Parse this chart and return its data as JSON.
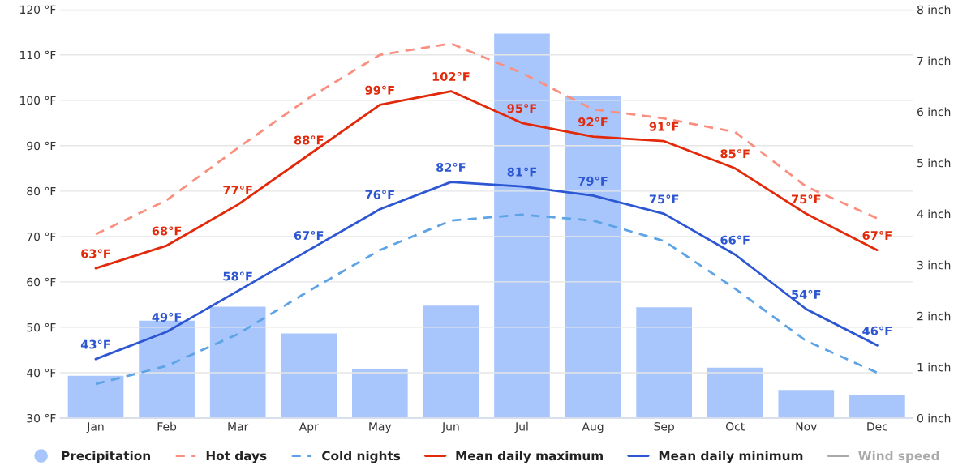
{
  "chart_data": {
    "type": "line",
    "categories": [
      "Jan",
      "Feb",
      "Mar",
      "Apr",
      "May",
      "Jun",
      "Jul",
      "Aug",
      "Sep",
      "Oct",
      "Nov",
      "Dec"
    ],
    "series": [
      {
        "name": "Precipitation",
        "type": "bar",
        "axis": "y2",
        "color": "#a8c6fc",
        "values": [
          0.84,
          1.92,
          2.19,
          1.67,
          0.97,
          2.21,
          7.54,
          6.31,
          2.18,
          1.0,
          0.56,
          0.46
        ]
      },
      {
        "name": "Hot days",
        "line_style": "dashed",
        "color": "#fb8f7f",
        "values": [
          70.5,
          78,
          89.5,
          100.5,
          110,
          112.5,
          106,
          98,
          96,
          93,
          81,
          74
        ]
      },
      {
        "name": "Cold nights",
        "line_style": "dashed",
        "color": "#5da3e6",
        "values": [
          37.5,
          41.5,
          48.5,
          58,
          67,
          73.5,
          74.8,
          73.5,
          69,
          58.5,
          47,
          40
        ]
      },
      {
        "name": "Mean daily maximum",
        "line_style": "solid",
        "color": "#e22a0a",
        "values": [
          63,
          68,
          77,
          88,
          99,
          102,
          95,
          92,
          91,
          85,
          75,
          67
        ],
        "value_labels": [
          "63°F",
          "68°F",
          "77°F",
          "88°F",
          "99°F",
          "102°F",
          "95°F",
          "92°F",
          "91°F",
          "85°F",
          "75°F",
          "67°F"
        ]
      },
      {
        "name": "Mean daily minimum",
        "line_style": "solid",
        "color": "#2d56d2",
        "values": [
          43,
          49,
          58,
          67,
          76,
          82,
          81,
          79,
          75,
          66,
          54,
          46
        ],
        "value_labels": [
          "43°F",
          "49°F",
          "58°F",
          "67°F",
          "76°F",
          "82°F",
          "81°F",
          "79°F",
          "75°F",
          "66°F",
          "54°F",
          "46°F"
        ]
      },
      {
        "name": "Wind speed",
        "line_style": "solid",
        "color": "#aaaaaa",
        "values": [
          null,
          null,
          null,
          null,
          null,
          null,
          null,
          null,
          null,
          null,
          null,
          null
        ]
      }
    ],
    "ylim": [
      30,
      120
    ],
    "yticks": [
      {
        "value": 30,
        "label": "30 °F"
      },
      {
        "value": 40,
        "label": "40 °F"
      },
      {
        "value": 50,
        "label": "50 °F"
      },
      {
        "value": 60,
        "label": "60 °F"
      },
      {
        "value": 70,
        "label": "70 °F"
      },
      {
        "value": 80,
        "label": "80 °F"
      },
      {
        "value": 90,
        "label": "90 °F"
      },
      {
        "value": 100,
        "label": "100 °F"
      },
      {
        "value": 110,
        "label": "110 °F"
      },
      {
        "value": 120,
        "label": "120 °F"
      }
    ],
    "y2lim": [
      0,
      8
    ],
    "y2ticks": [
      {
        "value": 0,
        "label": "0 inch"
      },
      {
        "value": 1,
        "label": "1 inch"
      },
      {
        "value": 2,
        "label": "2 inch"
      },
      {
        "value": 3,
        "label": "3 inch"
      },
      {
        "value": 4,
        "label": "4 inch"
      },
      {
        "value": 5,
        "label": "5 inch"
      },
      {
        "value": 6,
        "label": "6 inch"
      },
      {
        "value": 7,
        "label": "7 inch"
      },
      {
        "value": 8,
        "label": "8 inch"
      }
    ],
    "grid": "y",
    "legend": "bottom"
  }
}
